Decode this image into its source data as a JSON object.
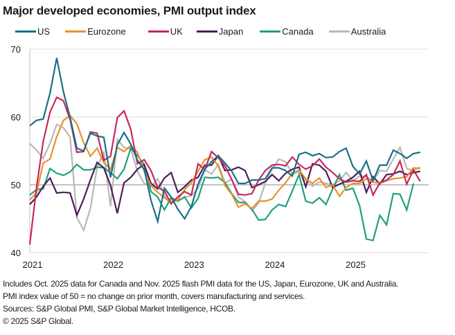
{
  "title": "Major developed economies, PMI output index",
  "footer": {
    "note1": "Includes Oct. 2025 data for Canada and Nov. 2025 flash PMI data for the US, Japan, Eurozone, UK and Australia.",
    "note2": "PMI index value of 50 = no change on prior month, covers manufacturing and services.",
    "sources": "Sources: S&P Global PMI, S&P Global Market Intelligence, HCOB.",
    "copyright": "© 2025 S&P Global."
  },
  "chart_data": {
    "type": "line",
    "title": "Major developed economies, PMI output index",
    "xlabel": "",
    "ylabel": "",
    "x_start": "2021-01",
    "x_end": "2025-11",
    "x_frequency": "monthly",
    "x_tick_labels": [
      "2021",
      "2022",
      "2023",
      "2024",
      "2025"
    ],
    "y_tick_labels": [
      "40",
      "50",
      "60",
      "70"
    ],
    "y_ticks": [
      40,
      50,
      60,
      70
    ],
    "ylim": [
      40,
      70
    ],
    "grid": "horizontal",
    "legend_position": "top",
    "series": [
      {
        "name": "US",
        "color": "#1a6e8a",
        "values": [
          58.7,
          59.5,
          59.7,
          63.5,
          68.7,
          63.7,
          59.9,
          55.4,
          55.0,
          57.6,
          57.2,
          57.0,
          51.1,
          55.9,
          57.7,
          56.0,
          53.6,
          52.3,
          47.7,
          44.6,
          49.5,
          48.2,
          46.4,
          45.0,
          46.8,
          50.1,
          52.3,
          53.4,
          54.3,
          53.2,
          52.0,
          50.2,
          50.2,
          50.7,
          50.7,
          50.9,
          52.5,
          52.5,
          52.1,
          51.3,
          54.5,
          54.8,
          54.3,
          54.6,
          54.0,
          54.1,
          54.9,
          55.4,
          52.7,
          51.6,
          53.5,
          50.6,
          52.9,
          52.9,
          55.1,
          54.6,
          53.9,
          54.6,
          54.8
        ]
      },
      {
        "name": "Eurozone",
        "color": "#e8922a",
        "values": [
          47.8,
          48.8,
          53.2,
          53.8,
          57.1,
          59.5,
          60.2,
          59.0,
          56.2,
          54.2,
          55.4,
          53.3,
          52.3,
          55.5,
          54.9,
          55.8,
          54.8,
          52.0,
          49.9,
          48.9,
          48.1,
          47.3,
          47.8,
          49.3,
          50.3,
          52.0,
          53.7,
          54.1,
          52.8,
          49.9,
          48.6,
          46.7,
          47.2,
          46.5,
          47.6,
          47.6,
          47.9,
          49.2,
          50.3,
          51.7,
          52.2,
          50.9,
          50.2,
          51.0,
          49.6,
          50.0,
          48.3,
          49.6,
          50.2,
          50.2,
          50.9,
          50.4,
          50.2,
          50.6,
          50.9,
          51.0,
          51.2,
          52.5,
          52.4
        ]
      },
      {
        "name": "UK",
        "color": "#c8285a",
        "values": [
          41.2,
          49.6,
          56.4,
          60.7,
          62.9,
          62.4,
          59.6,
          54.8,
          54.9,
          57.8,
          57.6,
          53.6,
          54.2,
          59.9,
          60.9,
          58.2,
          53.1,
          53.7,
          52.1,
          49.6,
          49.1,
          47.2,
          48.2,
          49.0,
          48.5,
          53.1,
          52.2,
          54.9,
          54.0,
          52.8,
          50.8,
          48.6,
          48.5,
          48.7,
          50.7,
          52.1,
          52.9,
          53.0,
          52.8,
          54.1,
          53.0,
          52.3,
          52.8,
          53.8,
          52.6,
          51.8,
          50.9,
          50.4,
          50.6,
          50.5,
          51.5,
          48.5,
          50.3,
          50.7,
          51.5,
          53.5,
          50.1,
          52.2,
          50.5
        ]
      },
      {
        "name": "Japan",
        "color": "#4a1d5a",
        "values": [
          47.1,
          48.2,
          49.8,
          51.0,
          48.8,
          48.9,
          48.8,
          45.5,
          47.9,
          50.7,
          53.3,
          52.5,
          49.9,
          45.8,
          50.3,
          51.1,
          52.3,
          53.0,
          50.2,
          49.4,
          51.0,
          51.8,
          48.9,
          49.7,
          50.7,
          51.1,
          52.9,
          52.9,
          54.3,
          52.1,
          52.2,
          52.6,
          52.1,
          49.6,
          50.0,
          50.5,
          51.5,
          50.6,
          51.7,
          52.3,
          52.6,
          49.7,
          53.1,
          52.9,
          52.0,
          49.6,
          50.1,
          50.5,
          51.1,
          52.0,
          48.9,
          51.2,
          50.1,
          51.5,
          51.6,
          52.0,
          51.5,
          51.8,
          52.0
        ]
      },
      {
        "name": "Canada",
        "color": "#20a07a",
        "values": [
          48.5,
          49.3,
          49.4,
          52.4,
          51.7,
          51.4,
          51.9,
          53.0,
          52.2,
          52.2,
          52.6,
          52.5,
          51.8,
          50.9,
          52.3,
          55.4,
          54.3,
          53.0,
          49.0,
          48.2,
          46.3,
          48.1,
          47.6,
          48.2,
          46.6,
          48.0,
          51.1,
          51.0,
          51.1,
          50.3,
          48.7,
          47.4,
          47.4,
          46.4,
          44.8,
          44.9,
          46.3,
          47.1,
          46.8,
          49.1,
          51.5,
          47.6,
          47.3,
          48.1,
          47.1,
          49.4,
          51.5,
          49.2,
          49.5,
          46.9,
          42.0,
          41.8,
          45.5,
          44.1,
          48.7,
          48.6,
          46.3,
          50.2
        ]
      },
      {
        "name": "Australia",
        "color": "#b8b8b8",
        "values": [
          56.1,
          55.1,
          53.9,
          56.1,
          58.9,
          58.4,
          57.0,
          45.2,
          43.3,
          46.5,
          52.6,
          54.8,
          46.8,
          56.7,
          55.5,
          55.3,
          52.0,
          50.2,
          49.7,
          50.9,
          48.4,
          47.6,
          47.6,
          48.2,
          48.4,
          49.5,
          52.2,
          51.6,
          53.0,
          50.3,
          50.8,
          48.2,
          47.5,
          46.2,
          47.3,
          50.3,
          52.3,
          53.8,
          53.4,
          51.6,
          51.9,
          50.6,
          49.8,
          50.4,
          50.2,
          50.0,
          50.6,
          51.8,
          50.6,
          51.3,
          51.2,
          50.6,
          52.1,
          52.0,
          53.8,
          55.5,
          52.4,
          52.1,
          52.6
        ]
      }
    ]
  }
}
